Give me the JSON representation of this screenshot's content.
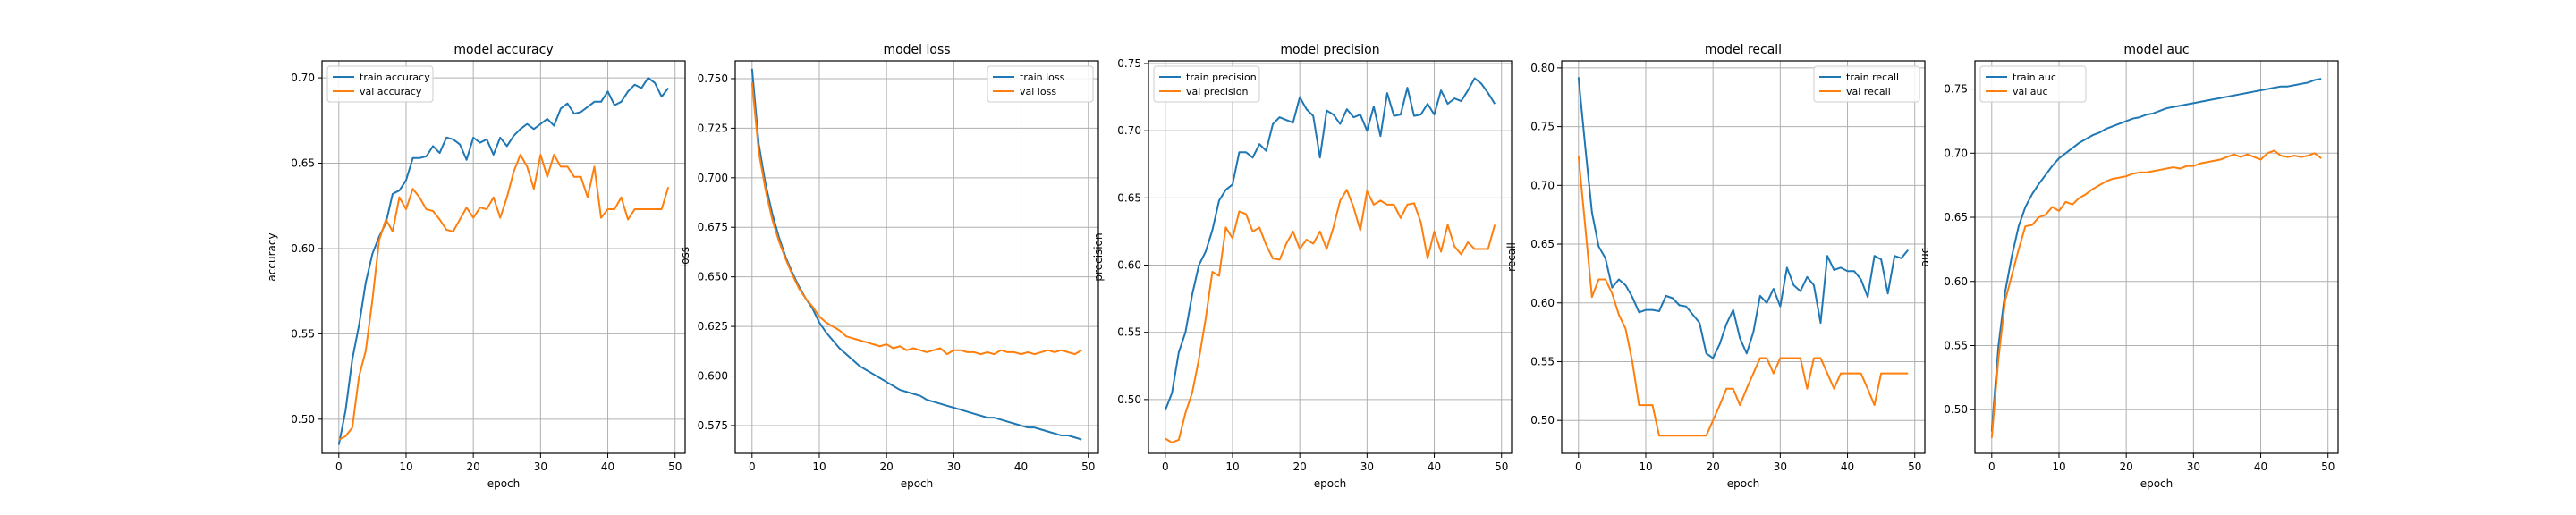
{
  "colors": {
    "train": "#1f77b4",
    "val": "#ff7f0e",
    "grid": "#b0b0b0"
  },
  "chart_data": [
    {
      "type": "line",
      "title": "model accuracy",
      "xlabel": "epoch",
      "ylabel": "accuracy",
      "xlim": [
        -2.5,
        51.5
      ],
      "ylim": [
        0.48,
        0.71
      ],
      "xticks": [
        0,
        10,
        20,
        30,
        40,
        50
      ],
      "yticks": [
        0.5,
        0.55,
        0.6,
        0.65,
        0.7
      ],
      "ytick_labels": [
        "0.50",
        "0.55",
        "0.60",
        "0.65",
        "0.70"
      ],
      "grid": true,
      "legend_loc": "upper-left",
      "series": [
        {
          "name": "train accuracy",
          "color": "#1f77b4",
          "values": [
            0.485,
            0.505,
            0.535,
            0.555,
            0.58,
            0.597,
            0.607,
            0.615,
            0.632,
            0.634,
            0.64,
            0.653,
            0.653,
            0.654,
            0.66,
            0.656,
            0.665,
            0.664,
            0.661,
            0.652,
            0.665,
            0.662,
            0.664,
            0.655,
            0.665,
            0.66,
            0.666,
            0.67,
            0.673,
            0.67,
            0.673,
            0.676,
            0.672,
            0.682,
            0.685,
            0.679,
            0.68,
            0.683,
            0.686,
            0.686,
            0.692,
            0.684,
            0.686,
            0.692,
            0.696,
            0.694,
            0.7,
            0.697,
            0.689,
            0.694
          ]
        },
        {
          "name": "val accuracy",
          "color": "#ff7f0e",
          "values": [
            0.488,
            0.49,
            0.495,
            0.525,
            0.54,
            0.57,
            0.605,
            0.617,
            0.61,
            0.63,
            0.623,
            0.635,
            0.63,
            0.623,
            0.622,
            0.617,
            0.611,
            0.61,
            0.617,
            0.624,
            0.618,
            0.624,
            0.623,
            0.63,
            0.618,
            0.63,
            0.645,
            0.655,
            0.648,
            0.635,
            0.655,
            0.642,
            0.655,
            0.648,
            0.648,
            0.642,
            0.642,
            0.63,
            0.648,
            0.618,
            0.623,
            0.623,
            0.63,
            0.617,
            0.623,
            0.623,
            0.623,
            0.623,
            0.623,
            0.636
          ]
        }
      ]
    },
    {
      "type": "line",
      "title": "model loss",
      "xlabel": "epoch",
      "ylabel": "loss",
      "xlim": [
        -2.5,
        51.5
      ],
      "ylim": [
        0.561,
        0.759
      ],
      "xticks": [
        0,
        10,
        20,
        30,
        40,
        50
      ],
      "yticks": [
        0.575,
        0.6,
        0.625,
        0.65,
        0.675,
        0.7,
        0.725,
        0.75
      ],
      "ytick_labels": [
        "0.575",
        "0.600",
        "0.625",
        "0.650",
        "0.675",
        "0.700",
        "0.725",
        "0.750"
      ],
      "grid": true,
      "legend_loc": "upper-right",
      "series": [
        {
          "name": "train loss",
          "color": "#1f77b4",
          "values": [
            0.755,
            0.717,
            0.697,
            0.682,
            0.67,
            0.66,
            0.652,
            0.645,
            0.639,
            0.634,
            0.627,
            0.622,
            0.618,
            0.614,
            0.611,
            0.608,
            0.605,
            0.603,
            0.601,
            0.599,
            0.597,
            0.595,
            0.593,
            0.592,
            0.591,
            0.59,
            0.588,
            0.587,
            0.586,
            0.585,
            0.584,
            0.583,
            0.582,
            0.581,
            0.58,
            0.579,
            0.579,
            0.578,
            0.577,
            0.576,
            0.575,
            0.574,
            0.574,
            0.573,
            0.572,
            0.571,
            0.57,
            0.57,
            0.569,
            0.568
          ]
        },
        {
          "name": "val loss",
          "color": "#ff7f0e",
          "values": [
            0.748,
            0.713,
            0.694,
            0.679,
            0.668,
            0.659,
            0.651,
            0.644,
            0.639,
            0.635,
            0.63,
            0.627,
            0.625,
            0.623,
            0.62,
            0.619,
            0.618,
            0.617,
            0.616,
            0.615,
            0.616,
            0.614,
            0.615,
            0.613,
            0.614,
            0.613,
            0.612,
            0.613,
            0.614,
            0.611,
            0.613,
            0.613,
            0.612,
            0.612,
            0.611,
            0.612,
            0.611,
            0.613,
            0.612,
            0.612,
            0.611,
            0.612,
            0.611,
            0.612,
            0.613,
            0.612,
            0.613,
            0.612,
            0.611,
            0.613
          ]
        }
      ]
    },
    {
      "type": "line",
      "title": "model precision",
      "xlabel": "epoch",
      "ylabel": "precision",
      "xlim": [
        -2.5,
        51.5
      ],
      "ylim": [
        0.46,
        0.752
      ],
      "xticks": [
        0,
        10,
        20,
        30,
        40,
        50
      ],
      "yticks": [
        0.5,
        0.55,
        0.6,
        0.65,
        0.7,
        0.75
      ],
      "ytick_labels": [
        "0.50",
        "0.55",
        "0.60",
        "0.65",
        "0.70",
        "0.75"
      ],
      "grid": true,
      "legend_loc": "upper-left",
      "series": [
        {
          "name": "train precision",
          "color": "#1f77b4",
          "values": [
            0.492,
            0.505,
            0.535,
            0.55,
            0.578,
            0.6,
            0.61,
            0.626,
            0.648,
            0.656,
            0.66,
            0.684,
            0.684,
            0.68,
            0.69,
            0.685,
            0.705,
            0.71,
            0.708,
            0.706,
            0.725,
            0.716,
            0.711,
            0.68,
            0.715,
            0.712,
            0.705,
            0.716,
            0.71,
            0.712,
            0.7,
            0.718,
            0.696,
            0.728,
            0.711,
            0.712,
            0.732,
            0.711,
            0.712,
            0.72,
            0.712,
            0.73,
            0.72,
            0.724,
            0.722,
            0.73,
            0.739,
            0.735,
            0.728,
            0.72
          ]
        },
        {
          "name": "val precision",
          "color": "#ff7f0e",
          "values": [
            0.471,
            0.468,
            0.47,
            0.49,
            0.505,
            0.53,
            0.56,
            0.595,
            0.592,
            0.628,
            0.62,
            0.64,
            0.638,
            0.625,
            0.628,
            0.615,
            0.605,
            0.604,
            0.616,
            0.625,
            0.612,
            0.619,
            0.616,
            0.625,
            0.612,
            0.628,
            0.648,
            0.656,
            0.643,
            0.626,
            0.655,
            0.645,
            0.648,
            0.645,
            0.645,
            0.635,
            0.645,
            0.646,
            0.632,
            0.605,
            0.625,
            0.61,
            0.63,
            0.614,
            0.608,
            0.617,
            0.612,
            0.612,
            0.612,
            0.63
          ]
        }
      ]
    },
    {
      "type": "line",
      "title": "model recall",
      "xlabel": "epoch",
      "ylabel": "recall",
      "xlim": [
        -2.5,
        51.5
      ],
      "ylim": [
        0.472,
        0.806
      ],
      "xticks": [
        0,
        10,
        20,
        30,
        40,
        50
      ],
      "yticks": [
        0.5,
        0.55,
        0.6,
        0.65,
        0.7,
        0.75,
        0.8
      ],
      "ytick_labels": [
        "0.50",
        "0.55",
        "0.60",
        "0.65",
        "0.70",
        "0.75",
        "0.80"
      ],
      "grid": true,
      "legend_loc": "upper-right",
      "series": [
        {
          "name": "train recall",
          "color": "#1f77b4",
          "values": [
            0.792,
            0.733,
            0.677,
            0.648,
            0.638,
            0.613,
            0.62,
            0.615,
            0.605,
            0.592,
            0.594,
            0.594,
            0.593,
            0.606,
            0.604,
            0.598,
            0.597,
            0.59,
            0.583,
            0.557,
            0.553,
            0.565,
            0.582,
            0.594,
            0.57,
            0.557,
            0.575,
            0.606,
            0.6,
            0.612,
            0.597,
            0.63,
            0.615,
            0.61,
            0.622,
            0.615,
            0.583,
            0.64,
            0.628,
            0.63,
            0.627,
            0.627,
            0.62,
            0.605,
            0.64,
            0.637,
            0.608,
            0.64,
            0.638,
            0.645
          ]
        },
        {
          "name": "val recall",
          "color": "#ff7f0e",
          "values": [
            0.725,
            0.665,
            0.605,
            0.62,
            0.62,
            0.608,
            0.59,
            0.578,
            0.55,
            0.513,
            0.513,
            0.513,
            0.487,
            0.487,
            0.487,
            0.487,
            0.487,
            0.487,
            0.487,
            0.487,
            0.5,
            0.513,
            0.527,
            0.527,
            0.513,
            0.527,
            0.54,
            0.553,
            0.553,
            0.54,
            0.553,
            0.553,
            0.553,
            0.553,
            0.527,
            0.553,
            0.553,
            0.54,
            0.527,
            0.54,
            0.54,
            0.54,
            0.54,
            0.527,
            0.513,
            0.54,
            0.54,
            0.54,
            0.54,
            0.54
          ]
        }
      ]
    },
    {
      "type": "line",
      "title": "model auc",
      "xlabel": "epoch",
      "ylabel": "auc",
      "xlim": [
        -2.5,
        51.5
      ],
      "ylim": [
        0.466,
        0.772
      ],
      "xticks": [
        0,
        10,
        20,
        30,
        40,
        50
      ],
      "yticks": [
        0.5,
        0.55,
        0.6,
        0.65,
        0.7,
        0.75
      ],
      "ytick_labels": [
        "0.50",
        "0.55",
        "0.60",
        "0.65",
        "0.70",
        "0.75"
      ],
      "grid": true,
      "legend_loc": "upper-left",
      "series": [
        {
          "name": "train auc",
          "color": "#1f77b4",
          "values": [
            0.483,
            0.55,
            0.592,
            0.62,
            0.643,
            0.658,
            0.668,
            0.676,
            0.683,
            0.69,
            0.696,
            0.7,
            0.704,
            0.708,
            0.711,
            0.714,
            0.716,
            0.719,
            0.721,
            0.723,
            0.725,
            0.727,
            0.728,
            0.73,
            0.731,
            0.733,
            0.735,
            0.736,
            0.737,
            0.738,
            0.739,
            0.74,
            0.741,
            0.742,
            0.743,
            0.744,
            0.745,
            0.746,
            0.747,
            0.748,
            0.749,
            0.75,
            0.751,
            0.752,
            0.752,
            0.753,
            0.754,
            0.755,
            0.757,
            0.758
          ]
        },
        {
          "name": "val auc",
          "color": "#ff7f0e",
          "values": [
            0.478,
            0.54,
            0.585,
            0.605,
            0.625,
            0.643,
            0.644,
            0.65,
            0.652,
            0.658,
            0.655,
            0.662,
            0.66,
            0.665,
            0.668,
            0.672,
            0.675,
            0.678,
            0.68,
            0.681,
            0.682,
            0.684,
            0.685,
            0.685,
            0.686,
            0.687,
            0.688,
            0.689,
            0.688,
            0.69,
            0.69,
            0.692,
            0.693,
            0.694,
            0.695,
            0.697,
            0.699,
            0.697,
            0.699,
            0.697,
            0.695,
            0.7,
            0.702,
            0.698,
            0.697,
            0.698,
            0.697,
            0.698,
            0.7,
            0.696
          ]
        }
      ]
    }
  ]
}
